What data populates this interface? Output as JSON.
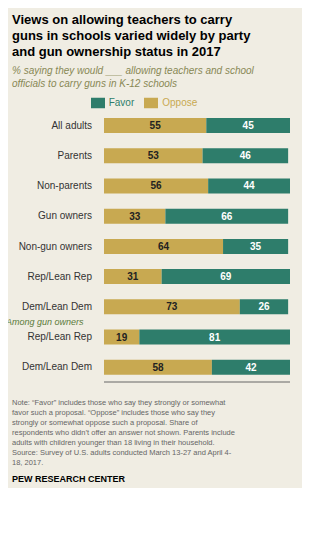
{
  "chart_data": {
    "type": "bar",
    "orientation": "horizontal",
    "stacked": true,
    "data_labels": true,
    "grid": false,
    "legend": "top",
    "tick_labels": "y",
    "title": "Views on allowing teachers to carry\nguns in schools varied widely by party\nand gun ownership status in 2017",
    "subtitle": "% saying they would ___ allowing teachers and school\nofficials to carry guns in K-12 schools",
    "categories": [
      "All adults",
      "Parents",
      "Non-parents",
      "Gun owners",
      "Non-gun owners",
      "Rep/Lean Rep",
      "Dem/Lean Dem",
      "Rep/Lean Rep",
      "Dem/Lean Dem"
    ],
    "series": [
      {
        "name": "Oppose",
        "color": "#C8A951",
        "values": [
          55,
          53,
          56,
          33,
          64,
          31,
          73,
          19,
          58
        ]
      },
      {
        "name": "Favor",
        "color": "#2E7D6B",
        "values": [
          45,
          46,
          44,
          66,
          35,
          69,
          26,
          81,
          42
        ]
      }
    ],
    "xlim": [
      0,
      100
    ],
    "annotations": [
      "Among gun owners",
      "Note: “Favor” includes those who say they strongly or somewhat\nfavor such a proposal. “Oppose” includes those who say they\nstrongly or somewhat oppose such a proposal. Share of\nrespondents who didn’t offer an answer not shown. Parents include\nadults with children younger than 18 living in their household.\nSource: Survey of U.S. adults conducted March 13-27 and April 4-\n18, 2017.",
      "PEW RESEARCH CENTER"
    ]
  }
}
